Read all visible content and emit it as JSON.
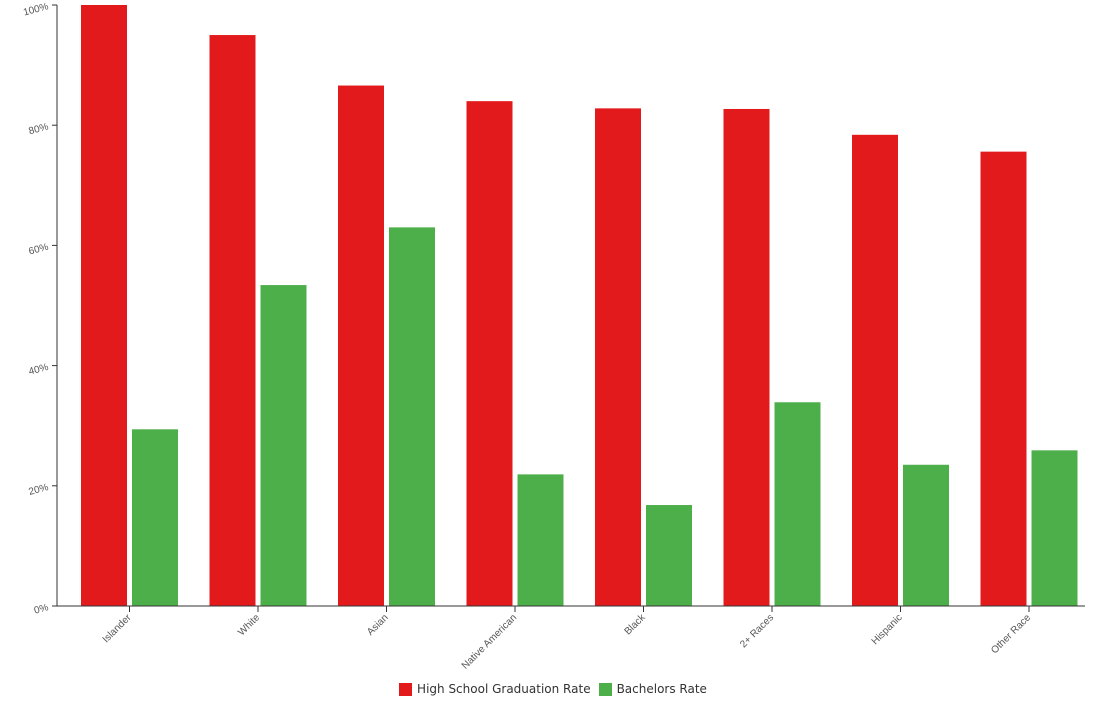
{
  "chart_data": {
    "type": "bar",
    "categories": [
      "Islander",
      "White",
      "Asian",
      "Native American",
      "Black",
      "2+ Races",
      "Hispanic",
      "Other Race"
    ],
    "series": [
      {
        "name": "High School Graduation Rate",
        "color": "#e31a1c",
        "values": [
          100,
          95,
          86.6,
          84,
          82.8,
          82.7,
          78.4,
          75.6
        ]
      },
      {
        "name": "Bachelors Rate",
        "color": "#4daf4a",
        "values": [
          29.4,
          53.4,
          63,
          21.9,
          16.8,
          33.9,
          23.5,
          25.9
        ]
      }
    ],
    "y_ticks": [
      "0%",
      "20%",
      "40%",
      "60%",
      "80%",
      "100%"
    ],
    "ylim": [
      0,
      100
    ],
    "legend_position": "bottom-center",
    "grid": false
  }
}
